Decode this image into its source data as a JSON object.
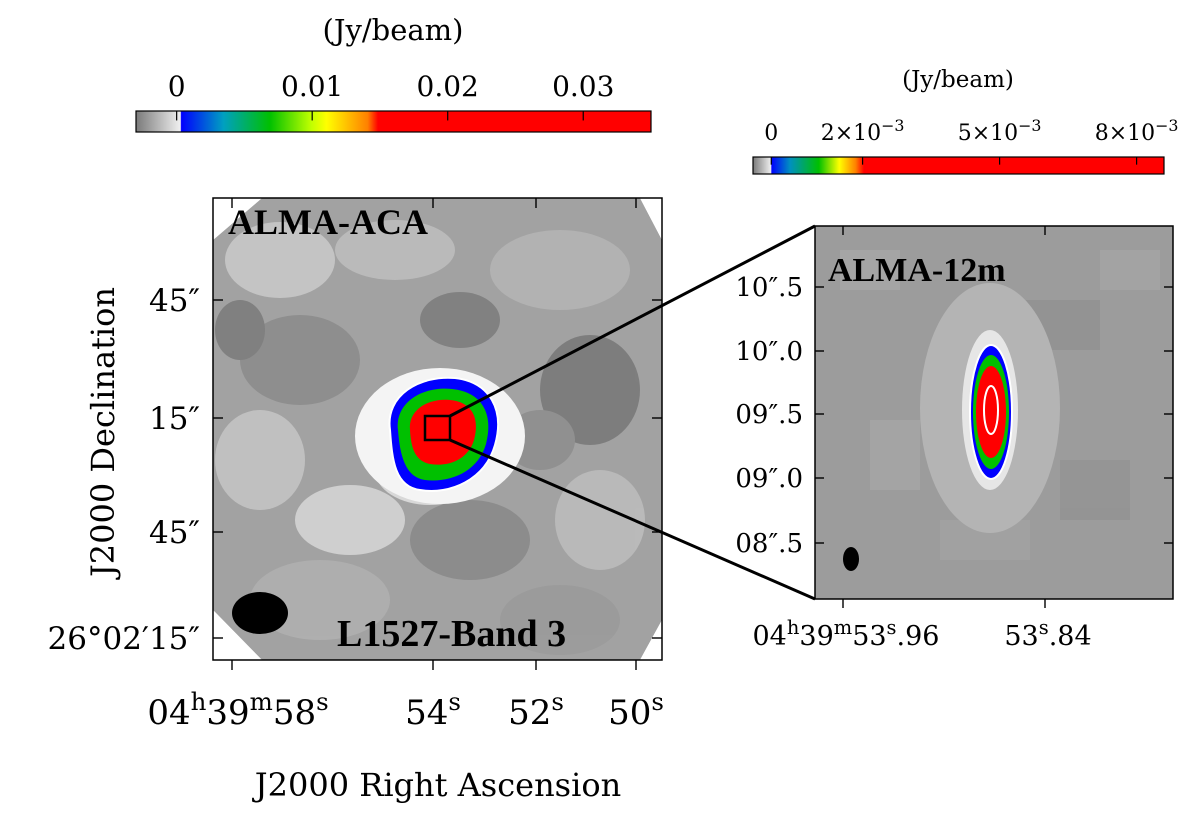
{
  "colorbar_left": {
    "unit": "(Jy/beam)",
    "ticks": [
      "0",
      "0.01",
      "0.02",
      "0.03"
    ],
    "range": [
      -0.003,
      0.035
    ],
    "tick_values": [
      0,
      0.01,
      0.02,
      0.03
    ]
  },
  "colorbar_right": {
    "unit": "(Jy/beam)",
    "ticks": [
      {
        "mant": "0",
        "exp": ""
      },
      {
        "mant": "2×10",
        "exp": "−3"
      },
      {
        "mant": "5×10",
        "exp": "−3"
      },
      {
        "mant": "8×10",
        "exp": "−3"
      }
    ],
    "range": [
      -0.0004,
      0.0086
    ],
    "tick_values": [
      0,
      0.002,
      0.005,
      0.008
    ]
  },
  "left_panel": {
    "label_top": "ALMA-ACA",
    "label_bottom": "L1527-Band 3",
    "ylabel": "J2000 Declination",
    "xlabel": "J2000 Right Ascension",
    "yticks": [
      "45″",
      "15″",
      "45″",
      "26°02′15″"
    ],
    "xticks": [
      {
        "parts": [
          [
            "04",
            ""
          ],
          [
            "h",
            "sup"
          ],
          [
            "39",
            ""
          ],
          [
            "m",
            "sup"
          ],
          [
            "58",
            ""
          ],
          [
            "s",
            "sup"
          ]
        ]
      },
      {
        "parts": [
          [
            "54",
            ""
          ],
          [
            "s",
            "sup"
          ]
        ]
      },
      {
        "parts": [
          [
            "52",
            ""
          ],
          [
            "s",
            "sup"
          ]
        ]
      },
      {
        "parts": [
          [
            "50",
            ""
          ],
          [
            "s",
            "sup"
          ]
        ]
      }
    ]
  },
  "right_panel": {
    "label_top": "ALMA-12m",
    "yticks": [
      "10″.5",
      "10″.0",
      "09″.5",
      "09″.0",
      "08″.5"
    ],
    "xticks": [
      {
        "parts": [
          [
            "04",
            ""
          ],
          [
            "h",
            "sup"
          ],
          [
            "39",
            ""
          ],
          [
            "m",
            "sup"
          ],
          [
            "53",
            ""
          ],
          [
            "s",
            "sup"
          ],
          [
            ".96",
            ""
          ]
        ]
      },
      {
        "parts": [
          [
            "53",
            ""
          ],
          [
            "s",
            "sup"
          ],
          [
            ".84",
            ""
          ]
        ]
      }
    ]
  },
  "colors": {
    "background": "#ffffff",
    "map_gray": "#9a9a9a",
    "colormap": [
      "#ffffff",
      "#0000ff",
      "#00c000",
      "#ffff00",
      "#ff0000"
    ]
  }
}
